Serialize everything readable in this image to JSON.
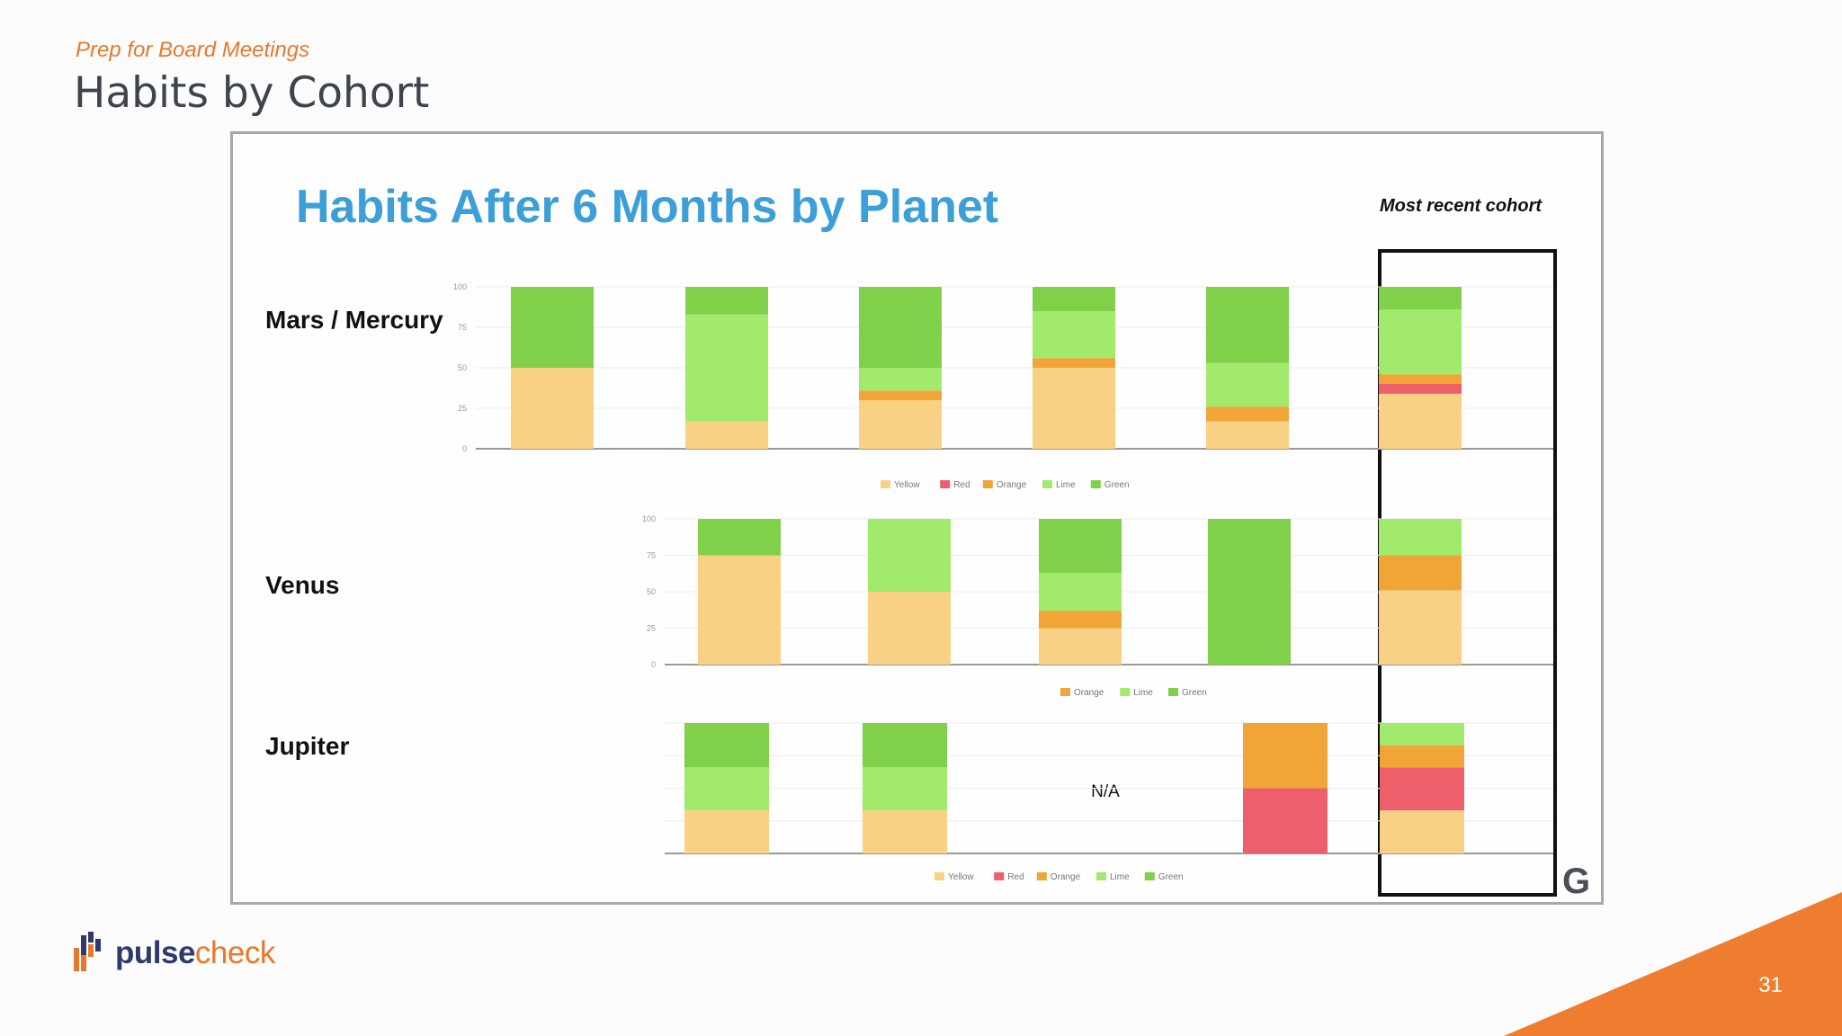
{
  "header": {
    "kicker": "Prep for Board Meetings",
    "title": "Habits by Cohort"
  },
  "slide_image": {
    "heading": "Habits After 6 Months by Planet",
    "callout": "Most recent cohort",
    "corner_mark": "G",
    "na_label": "N/A"
  },
  "footer": {
    "brand_part1": "pulse",
    "brand_part2": "check",
    "page_number": "31"
  },
  "colors": {
    "Yellow": "#f9d184",
    "Red": "#ee5f6c",
    "Orange": "#f1a536",
    "Lime": "#a2ea6c",
    "Green": "#80d04a",
    "accent": "#e8782a",
    "heading_blue": "#3c9fd8"
  },
  "chart_data": [
    {
      "type": "bar",
      "stacked": true,
      "row_label": "Mars / Mercury",
      "ylim": [
        0,
        100
      ],
      "y_ticks": [
        "0",
        "25",
        "50",
        "75",
        "100"
      ],
      "legend": [
        "Yellow",
        "Red",
        "Orange",
        "Lime",
        "Green"
      ],
      "legend_position": "bottom",
      "series": [
        {
          "name": "Yellow",
          "values": [
            50,
            17,
            30,
            50,
            17,
            34
          ]
        },
        {
          "name": "Red",
          "values": [
            0,
            0,
            0,
            0,
            0,
            6
          ]
        },
        {
          "name": "Orange",
          "values": [
            0,
            0,
            6,
            6,
            9,
            6
          ]
        },
        {
          "name": "Lime",
          "values": [
            0,
            66,
            14,
            29,
            27,
            40
          ]
        },
        {
          "name": "Green",
          "values": [
            50,
            17,
            50,
            15,
            47,
            14
          ]
        }
      ]
    },
    {
      "type": "bar",
      "stacked": true,
      "row_label": "Venus",
      "ylim": [
        0,
        100
      ],
      "y_ticks": [
        "0",
        "25",
        "50",
        "75",
        "100"
      ],
      "legend": [
        "Orange",
        "Lime",
        "Green"
      ],
      "legend_position": "bottom",
      "series": [
        {
          "name": "Yellow",
          "values": [
            75,
            50,
            25,
            0,
            51
          ]
        },
        {
          "name": "Orange",
          "values": [
            0,
            0,
            12,
            0,
            24
          ]
        },
        {
          "name": "Lime",
          "values": [
            0,
            50,
            26,
            0,
            25
          ]
        },
        {
          "name": "Green",
          "values": [
            25,
            0,
            37,
            100,
            0
          ]
        }
      ]
    },
    {
      "type": "bar",
      "stacked": true,
      "row_label": "Jupiter",
      "ylim": [
        0,
        100
      ],
      "legend": [
        "Yellow",
        "Red",
        "Orange",
        "Lime",
        "Green"
      ],
      "legend_position": "bottom",
      "series": [
        {
          "name": "Yellow",
          "values": [
            33,
            33,
            null,
            0,
            33
          ]
        },
        {
          "name": "Red",
          "values": [
            0,
            0,
            null,
            50,
            33
          ]
        },
        {
          "name": "Orange",
          "values": [
            0,
            0,
            null,
            50,
            17
          ]
        },
        {
          "name": "Lime",
          "values": [
            33,
            33,
            null,
            0,
            17
          ]
        },
        {
          "name": "Green",
          "values": [
            34,
            34,
            null,
            0,
            0
          ]
        }
      ]
    }
  ]
}
